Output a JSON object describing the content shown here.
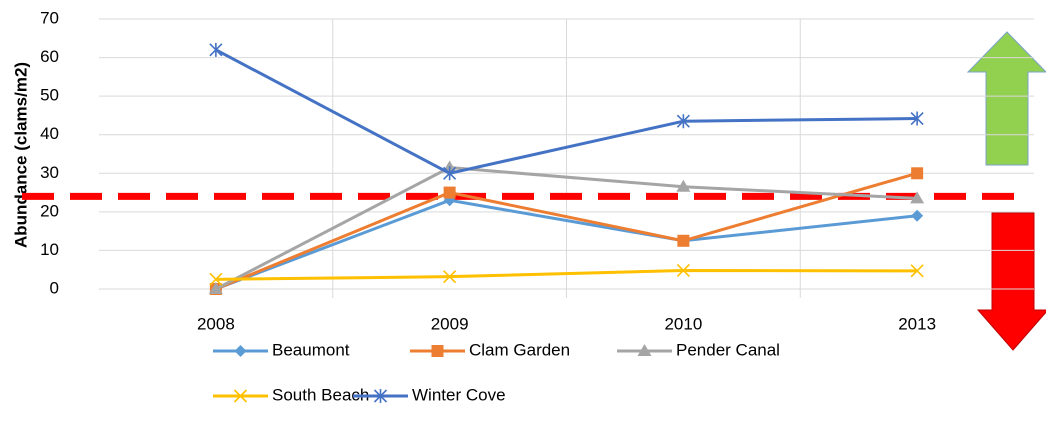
{
  "chart_data": {
    "type": "line",
    "y_label": "Abundance (clams/m2)",
    "categories": [
      "2008",
      "2009",
      "2010",
      "2013"
    ],
    "series": [
      {
        "name": "Beaumont",
        "color": "#5b9bd5",
        "marker": "diamond",
        "values": [
          0,
          23,
          12.5,
          19
        ]
      },
      {
        "name": "Clam Garden",
        "color": "#ed7d31",
        "marker": "square",
        "values": [
          0,
          25,
          12.5,
          30
        ]
      },
      {
        "name": "Pender Canal",
        "color": "#a5a5a5",
        "marker": "triangle",
        "values": [
          0,
          31.5,
          26.5,
          23.5
        ]
      },
      {
        "name": "South Beach",
        "color": "#ffc000",
        "marker": "x",
        "values": [
          2.5,
          3.2,
          4.8,
          4.7
        ]
      },
      {
        "name": "Winter Cove",
        "color": "#4472c4",
        "marker": "star",
        "values": [
          62,
          30,
          43.5,
          44.2
        ]
      }
    ],
    "threshold": {
      "value": 24,
      "color": "#ff0000"
    },
    "ylim": [
      0,
      70
    ],
    "yticks": [
      0,
      10,
      20,
      30,
      40,
      50,
      60,
      70
    ],
    "grid": true
  }
}
